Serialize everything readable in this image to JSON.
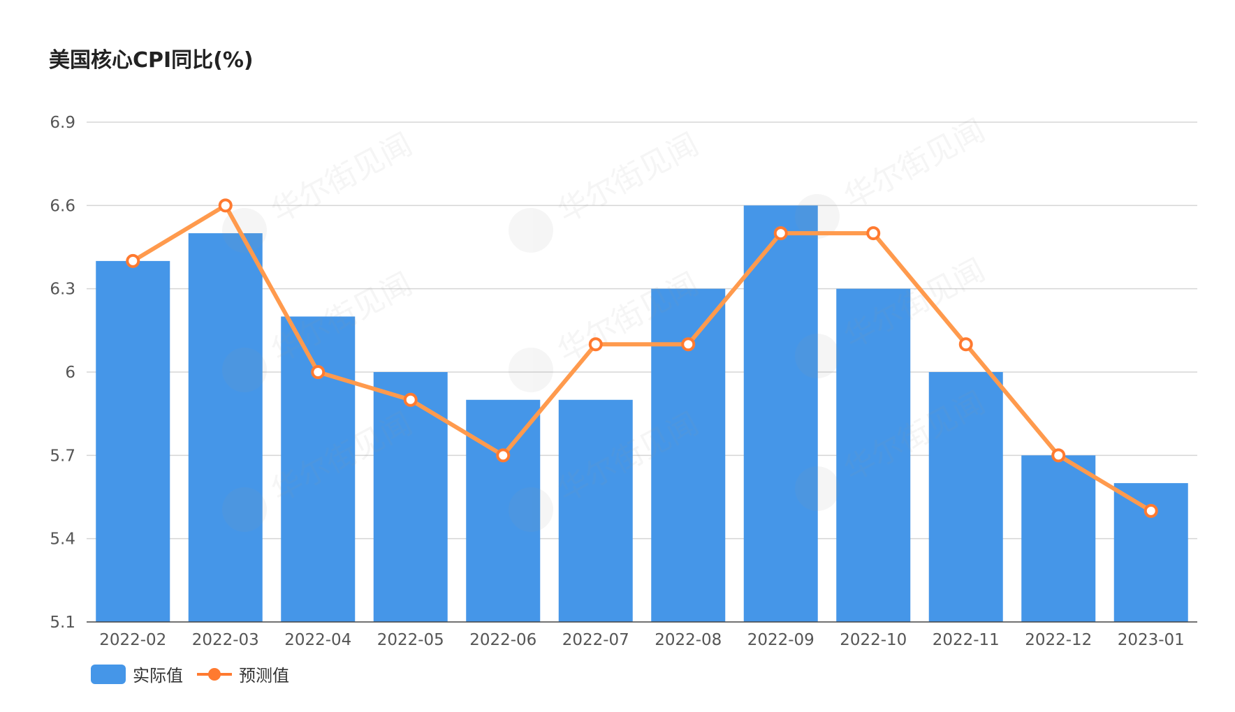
{
  "chart_data": {
    "type": "bar",
    "title": "美国核心CPI同比(%)",
    "categories": [
      "2022-02",
      "2022-03",
      "2022-04",
      "2022-05",
      "2022-06",
      "2022-07",
      "2022-08",
      "2022-09",
      "2022-10",
      "2022-11",
      "2022-12",
      "2023-01"
    ],
    "series": [
      {
        "name": "实际值",
        "type": "bar",
        "color": "#4596e8",
        "values": [
          6.4,
          6.5,
          6.2,
          6.0,
          5.9,
          5.9,
          6.3,
          6.6,
          6.3,
          6.0,
          5.7,
          5.6
        ]
      },
      {
        "name": "预测值",
        "type": "line",
        "color": "#ff9a4d",
        "marker_color": "#ff7a30",
        "values": [
          6.4,
          6.6,
          6.0,
          5.9,
          5.7,
          6.1,
          6.1,
          6.5,
          6.5,
          6.1,
          5.7,
          5.5
        ]
      }
    ],
    "ylim": [
      5.1,
      6.9
    ],
    "yticks": [
      "5.1",
      "5.4",
      "5.7",
      "6",
      "6.3",
      "6.6",
      "6.9"
    ],
    "grid": true,
    "legend_position": "bottom-left",
    "watermark": "华尔街见闻"
  }
}
